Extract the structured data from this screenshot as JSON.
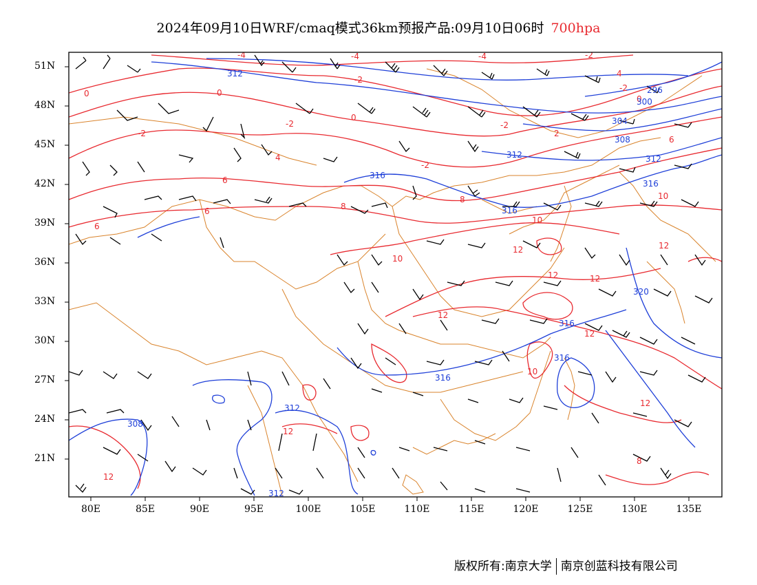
{
  "title": {
    "text": "2024年09月10日WRF/cmaq模式36km预报产品:09月10日06时",
    "level": "700hpa",
    "level_color": "#e8292f"
  },
  "map": {
    "lat_labels": [
      "51N",
      "48N",
      "45N",
      "42N",
      "39N",
      "36N",
      "33N",
      "30N",
      "27N",
      "24N",
      "21N"
    ],
    "lon_labels": [
      "80E",
      "85E",
      "90E",
      "95E",
      "100E",
      "105E",
      "110E",
      "115E",
      "120E",
      "125E",
      "130E",
      "135E"
    ],
    "temperature_labels": [
      "-4",
      "-4",
      "-4",
      "-2",
      "-2",
      "0",
      "0",
      "0",
      "0",
      "-2",
      "-2",
      "-2",
      "-2",
      "4",
      "4",
      "-2",
      "2",
      "6",
      "6",
      "6",
      "6",
      "8",
      "8",
      "10",
      "10",
      "10",
      "12",
      "12",
      "12",
      "12",
      "12",
      "12",
      "10",
      "12",
      "12",
      "12",
      "8"
    ],
    "height_labels": [
      "312",
      "316",
      "312",
      "296",
      "300",
      "304",
      "308",
      "312",
      "316",
      "316",
      "316",
      "316",
      "320",
      "316",
      "312",
      "312",
      "308",
      "312"
    ],
    "colors": {
      "temperature": "#e8292f",
      "height": "#1e3fd8",
      "boundary": "#d9832b",
      "wind": "#000000"
    }
  },
  "footer": {
    "left": "版权所有:南京大学",
    "right": "南京创蓝科技有限公司"
  }
}
